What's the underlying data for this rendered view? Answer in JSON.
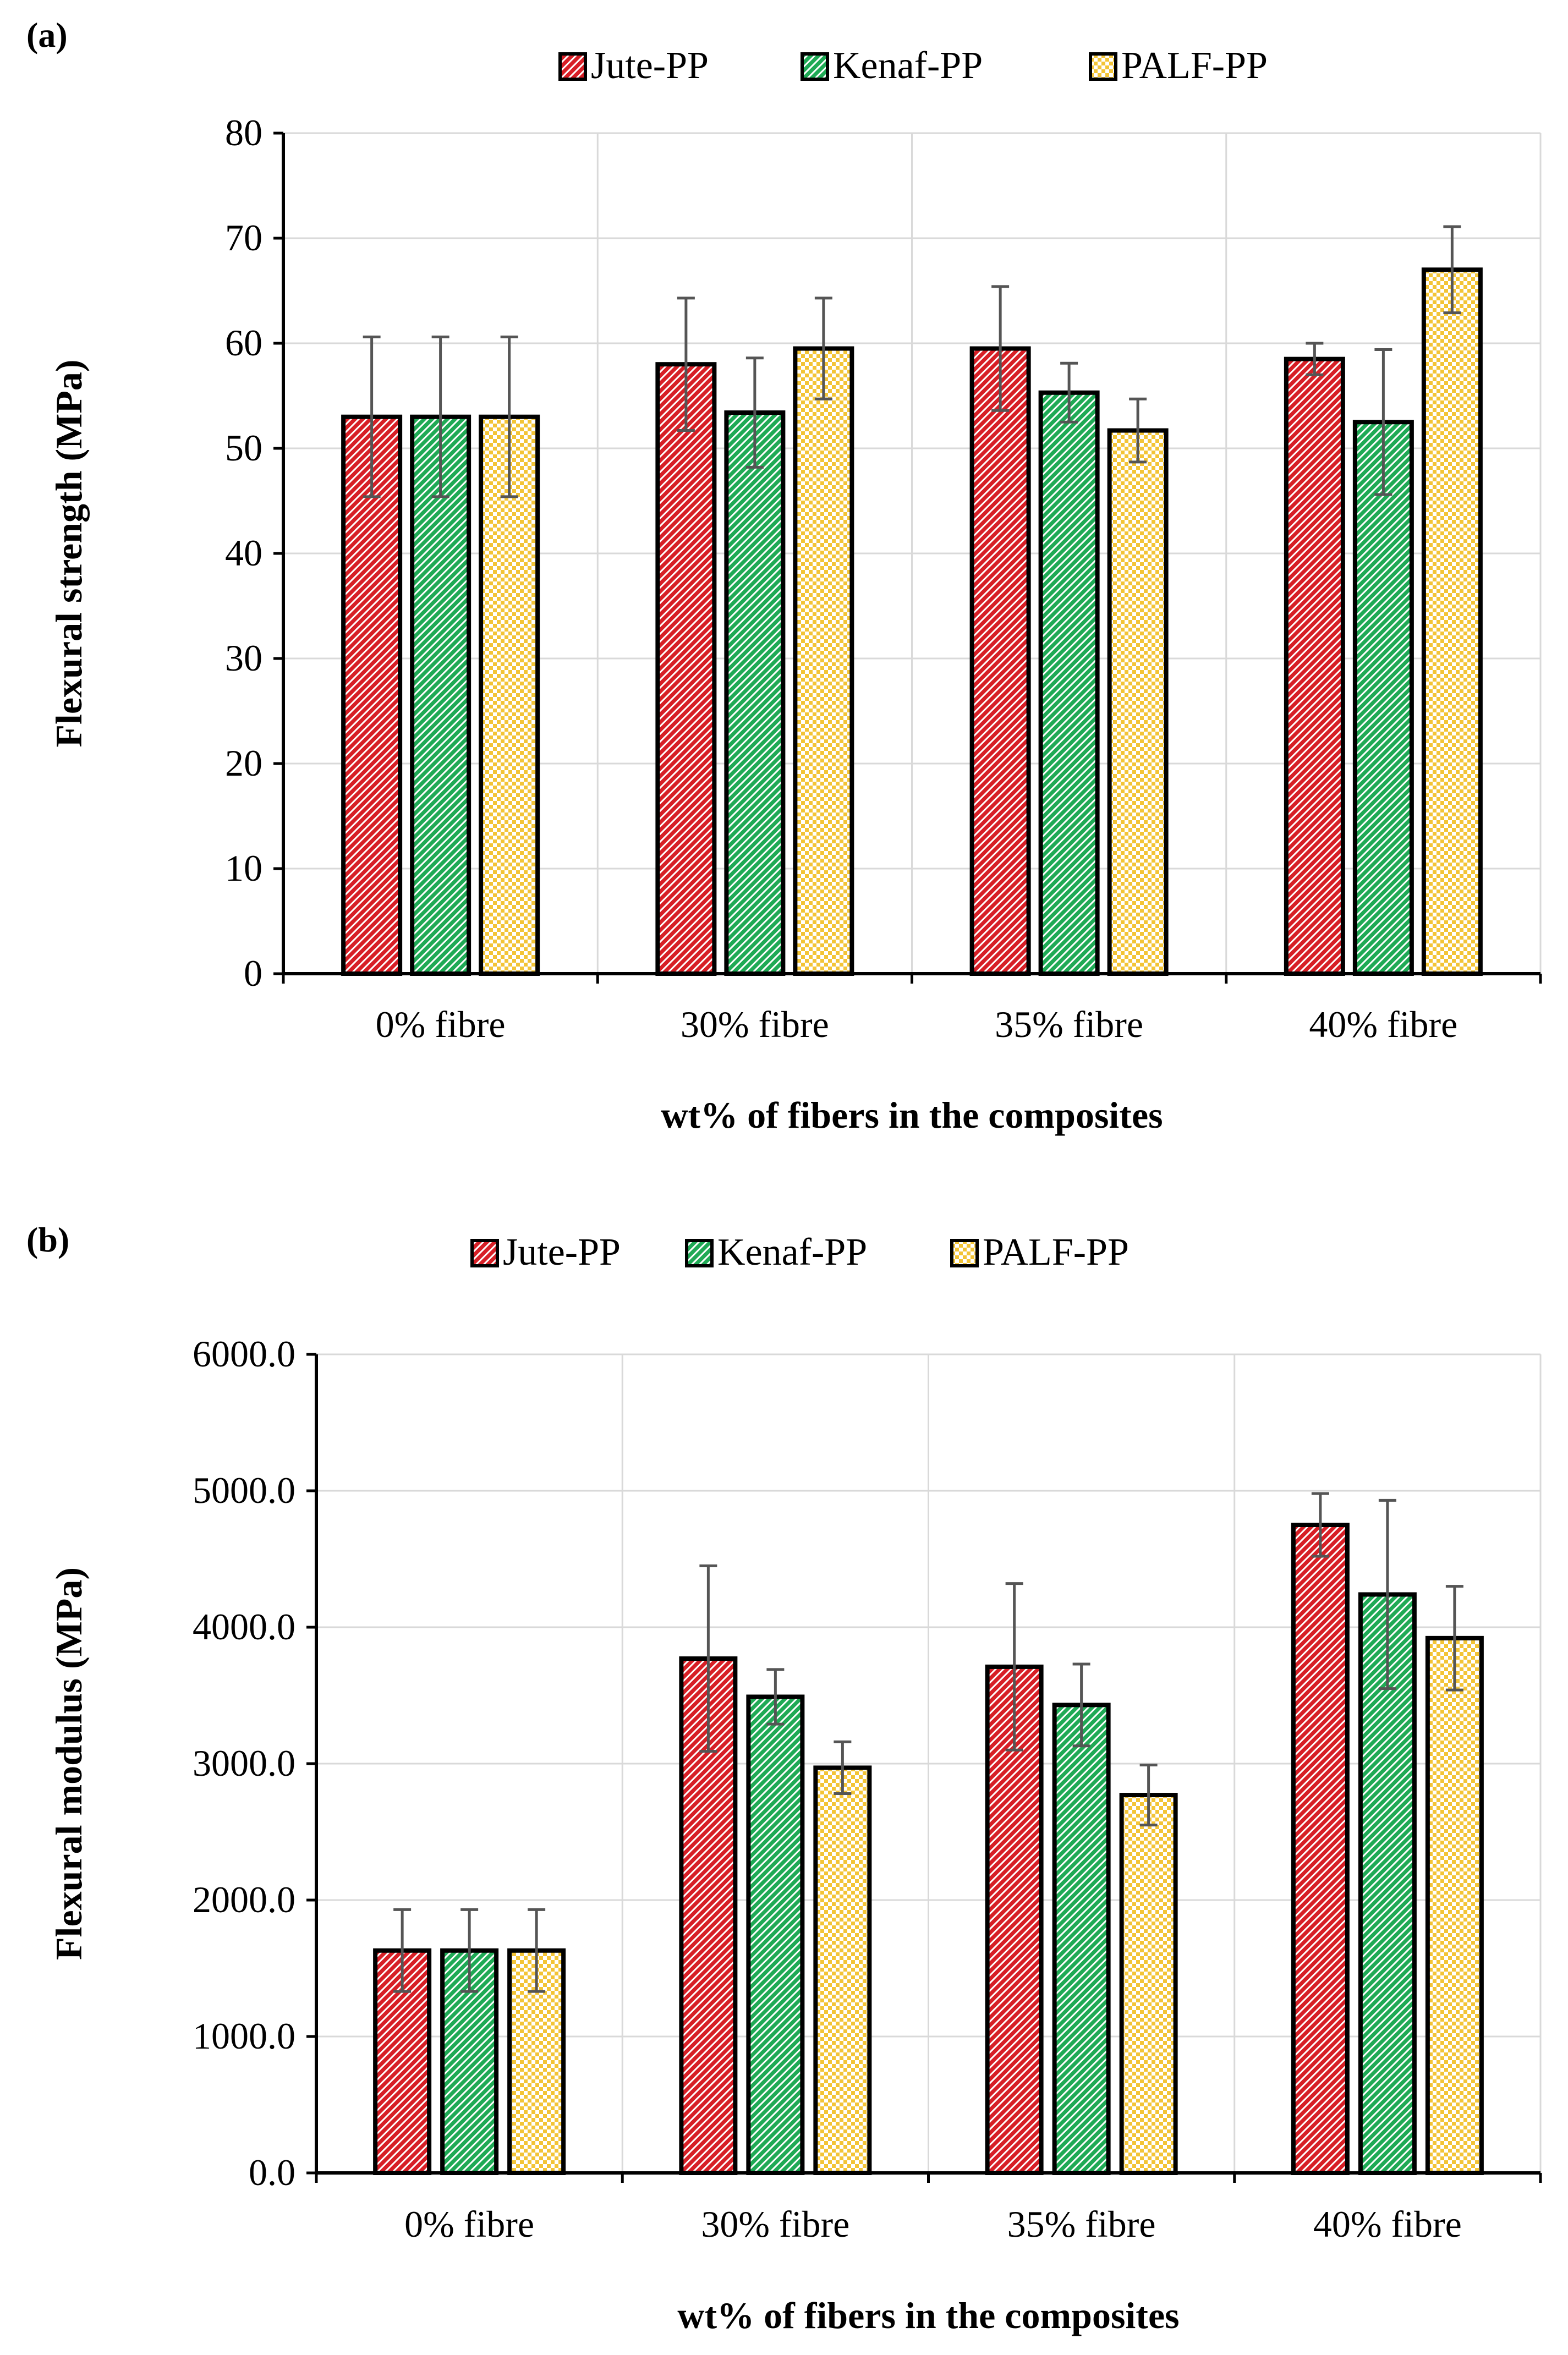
{
  "colors": {
    "jute": "#d71f26",
    "kenaf": "#1faa55",
    "palf": "#f3c436",
    "grid": "#d9d9d9",
    "axis": "#000000",
    "error": "#555555"
  },
  "chart_data": [
    {
      "panel_label": "(a)",
      "type": "bar",
      "title": "",
      "categories": [
        "0% fibre",
        "30% fibre",
        "35% fibre",
        "40% fibre"
      ],
      "series": [
        {
          "name": "Jute-PP",
          "color_key": "jute",
          "values": [
            53,
            58,
            59.5,
            58.5
          ],
          "errors": [
            7.6,
            6.3,
            5.9,
            1.5
          ]
        },
        {
          "name": "Kenaf-PP",
          "color_key": "kenaf",
          "values": [
            53,
            53.4,
            55.3,
            52.5
          ],
          "errors": [
            7.6,
            5.2,
            2.8,
            6.9
          ]
        },
        {
          "name": "PALF-PP",
          "color_key": "palf",
          "values": [
            53,
            59.5,
            51.7,
            67
          ],
          "errors": [
            7.6,
            4.8,
            3.0,
            4.1
          ]
        }
      ],
      "xlabel": "wt% of fibers in the composites",
      "ylabel": "Flexural strength (MPa)",
      "ylim": [
        0,
        80
      ],
      "yticks": [
        0,
        10,
        20,
        30,
        40,
        50,
        60,
        70,
        80
      ],
      "ytick_labels": [
        "0",
        "10",
        "20",
        "30",
        "40",
        "50",
        "60",
        "70",
        "80"
      ],
      "grid": true,
      "legend": "top-center"
    },
    {
      "panel_label": "(b)",
      "type": "bar",
      "title": "",
      "categories": [
        "0% fibre",
        "30% fibre",
        "35% fibre",
        "40% fibre"
      ],
      "series": [
        {
          "name": "Jute-PP",
          "color_key": "jute",
          "values": [
            1630,
            3770,
            3710,
            4750
          ],
          "errors": [
            300,
            680,
            610,
            230
          ]
        },
        {
          "name": "Kenaf-PP",
          "color_key": "kenaf",
          "values": [
            1630,
            3490,
            3430,
            4240
          ],
          "errors": [
            300,
            200,
            300,
            690
          ]
        },
        {
          "name": "PALF-PP",
          "color_key": "palf",
          "values": [
            1630,
            2970,
            2770,
            3920
          ],
          "errors": [
            300,
            190,
            220,
            380
          ]
        }
      ],
      "xlabel": "wt% of fibers in the composites",
      "ylabel": "Flexural modulus (MPa)",
      "ylim": [
        0,
        6000
      ],
      "yticks": [
        0,
        1000,
        2000,
        3000,
        4000,
        5000,
        6000
      ],
      "ytick_labels": [
        "0.0",
        "1000.0",
        "2000.0",
        "3000.0",
        "4000.0",
        "5000.0",
        "6000.0"
      ],
      "grid": true,
      "legend": "top-center"
    }
  ]
}
